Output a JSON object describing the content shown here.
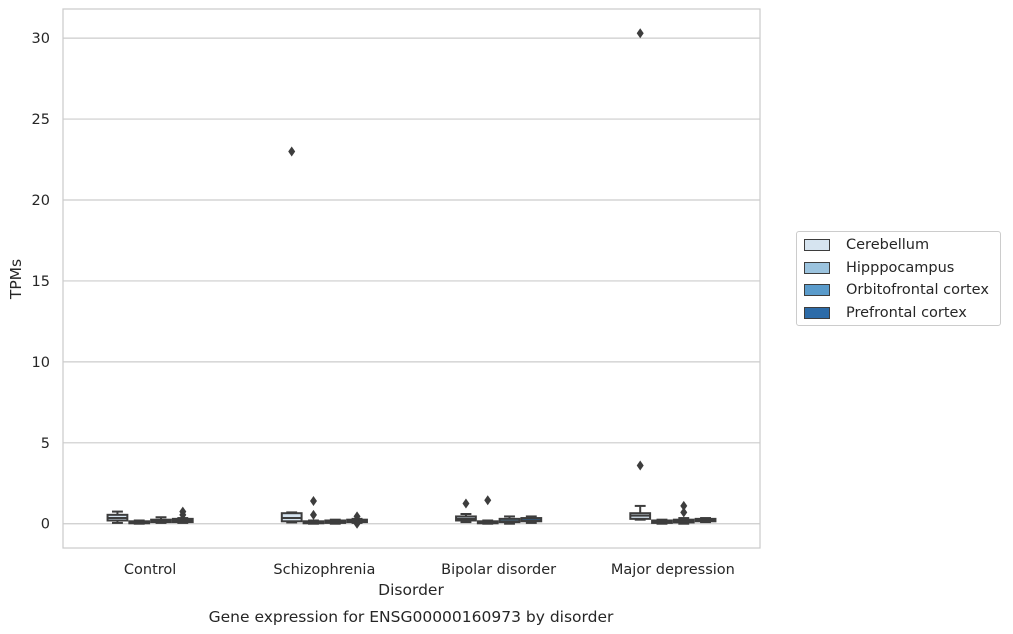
{
  "chart_data": {
    "type": "box",
    "title": "Gene expression for ENSG00000160973 by disorder",
    "xlabel": "Disorder",
    "ylabel": "TPMs",
    "categories": [
      "Control",
      "Schizophrenia",
      "Bipolar disorder",
      "Major depression"
    ],
    "ylim": [
      -1.5,
      31.8
    ],
    "yticks": [
      "0",
      "5",
      "10",
      "15",
      "20",
      "25",
      "30"
    ],
    "grid": "horizontal",
    "legend_position": "right",
    "series": [
      {
        "name": "Cerebellum",
        "color": "#d6e4f0",
        "boxes": [
          {
            "whislo": 0.05,
            "q1": 0.2,
            "med": 0.35,
            "q3": 0.55,
            "whishi": 0.75,
            "fliers": []
          },
          {
            "whislo": 0.08,
            "q1": 0.15,
            "med": 0.35,
            "q3": 0.65,
            "whishi": 0.7,
            "fliers": [
              23.0
            ]
          },
          {
            "whislo": 0.1,
            "q1": 0.2,
            "med": 0.3,
            "q3": 0.45,
            "whishi": 0.6,
            "fliers": [
              1.25
            ]
          },
          {
            "whislo": 0.25,
            "q1": 0.3,
            "med": 0.5,
            "q3": 0.65,
            "whishi": 1.1,
            "fliers": [
              3.6,
              30.3
            ]
          }
        ]
      },
      {
        "name": "Hipppocampus",
        "color": "#9bc3de",
        "boxes": [
          {
            "whislo": 0.0,
            "q1": 0.05,
            "med": 0.1,
            "q3": 0.15,
            "whishi": 0.2,
            "fliers": []
          },
          {
            "whislo": 0.0,
            "q1": 0.05,
            "med": 0.1,
            "q3": 0.15,
            "whishi": 0.2,
            "fliers": [
              1.4,
              0.55
            ]
          },
          {
            "whislo": 0.0,
            "q1": 0.05,
            "med": 0.1,
            "q3": 0.15,
            "whishi": 0.2,
            "fliers": [
              1.45
            ]
          },
          {
            "whislo": 0.0,
            "q1": 0.05,
            "med": 0.1,
            "q3": 0.2,
            "whishi": 0.25,
            "fliers": []
          }
        ]
      },
      {
        "name": "Orbitofrontal cortex",
        "color": "#5a9bcb",
        "boxes": [
          {
            "whislo": 0.05,
            "q1": 0.1,
            "med": 0.15,
            "q3": 0.25,
            "whishi": 0.4,
            "fliers": []
          },
          {
            "whislo": 0.0,
            "q1": 0.05,
            "med": 0.1,
            "q3": 0.2,
            "whishi": 0.25,
            "fliers": []
          },
          {
            "whislo": 0.0,
            "q1": 0.1,
            "med": 0.15,
            "q3": 0.3,
            "whishi": 0.45,
            "fliers": []
          },
          {
            "whislo": 0.0,
            "q1": 0.08,
            "med": 0.15,
            "q3": 0.25,
            "whishi": 0.35,
            "fliers": [
              1.1,
              0.7
            ]
          }
        ]
      },
      {
        "name": "Prefrontal cortex",
        "color": "#2c6ba8",
        "boxes": [
          {
            "whislo": 0.05,
            "q1": 0.1,
            "med": 0.2,
            "q3": 0.3,
            "whishi": 0.35,
            "fliers": [
              0.55,
              0.75
            ]
          },
          {
            "whislo": 0.05,
            "q1": 0.1,
            "med": 0.2,
            "q3": 0.25,
            "whishi": 0.3,
            "fliers": [
              0.45,
              0.0
            ]
          },
          {
            "whislo": 0.05,
            "q1": 0.15,
            "med": 0.2,
            "q3": 0.35,
            "whishi": 0.45,
            "fliers": []
          },
          {
            "whislo": 0.1,
            "q1": 0.15,
            "med": 0.25,
            "q3": 0.3,
            "whishi": 0.35,
            "fliers": []
          }
        ]
      }
    ]
  }
}
